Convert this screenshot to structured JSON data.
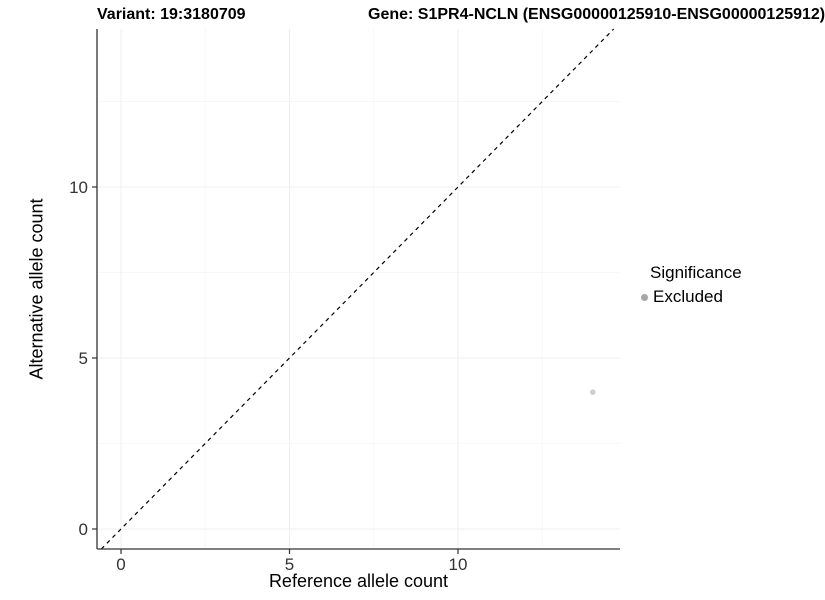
{
  "titles": {
    "left": "Variant: 19:3180709",
    "right": "Gene: S1PR4-NCLN (ENSG00000125910-ENSG00000125912)"
  },
  "axes": {
    "x_label": "Reference allele count",
    "y_label": "Alternative allele count"
  },
  "legend": {
    "title": "Significance",
    "items": [
      {
        "label": "Excluded",
        "color": "#a6a6a6"
      }
    ]
  },
  "colors": {
    "axis_line": "#333333",
    "tick_label": "#333333",
    "grid_major": "#efefef",
    "grid_minor": "#f7f7f7",
    "identity_line": "#000000",
    "point": "#cecece"
  },
  "chart_data": {
    "type": "scatter",
    "title_left": "Variant: 19:3180709",
    "title_right": "Gene: S1PR4-NCLN (ENSG00000125910-ENSG00000125912)",
    "xlabel": "Reference allele count",
    "ylabel": "Alternative allele count",
    "x_ticks": [
      0,
      5,
      10
    ],
    "y_ticks": [
      0,
      5,
      10
    ],
    "xlim": [
      -0.7,
      14.8
    ],
    "ylim": [
      -0.7,
      14.8
    ],
    "grid": "major and minor, very light gray",
    "legend_position": "right-outside",
    "identity_line": {
      "style": "dashed",
      "slope": 1,
      "intercept": 0,
      "color": "#000000"
    },
    "series": [
      {
        "name": "Excluded",
        "points": [
          {
            "x": 14,
            "y": 4
          }
        ],
        "color": "#cecece"
      }
    ]
  }
}
